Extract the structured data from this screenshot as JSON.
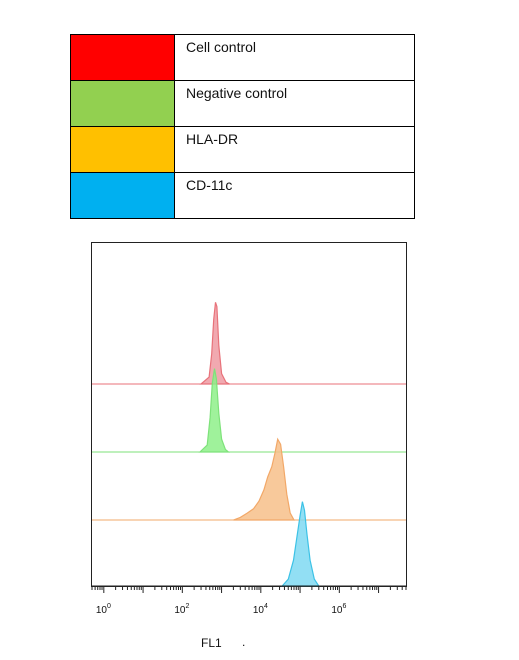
{
  "legend": [
    {
      "label": "Cell control",
      "color": "#ff0000"
    },
    {
      "label": "Negative control",
      "color": "#92d050"
    },
    {
      "label": "HLA-DR",
      "color": "#ffc000"
    },
    {
      "label": "CD-11c",
      "color": "#00b0f0"
    }
  ],
  "chart_data": {
    "type": "area",
    "title": "",
    "xlabel": "FL1",
    "ylabel": "",
    "xscale": "log",
    "xlim": [
      0.5,
      50000000
    ],
    "x_ticks": [
      {
        "value": 1,
        "base": "10",
        "exp": "0"
      },
      {
        "value": 100,
        "base": "10",
        "exp": "2"
      },
      {
        "value": 10000,
        "base": "10",
        "exp": "4"
      },
      {
        "value": 1000000,
        "base": "10",
        "exp": "6"
      }
    ],
    "layout": "stacked offset histograms, one baseline per series",
    "grid": false,
    "series": [
      {
        "name": "Cell control",
        "line_color": "#e8727a",
        "fill": "#ef9aa2",
        "points": [
          [
            300,
            0
          ],
          [
            480,
            0.08
          ],
          [
            560,
            0.35
          ],
          [
            630,
            0.75
          ],
          [
            700,
            0.95
          ],
          [
            760,
            0.9
          ],
          [
            850,
            0.45
          ],
          [
            1000,
            0.12
          ],
          [
            1300,
            0.02
          ],
          [
            1600,
            0
          ]
        ]
      },
      {
        "name": "Negative control",
        "line_color": "#7ee27a",
        "fill": "#8ef08a",
        "points": [
          [
            280,
            0
          ],
          [
            430,
            0.08
          ],
          [
            510,
            0.4
          ],
          [
            580,
            0.8
          ],
          [
            660,
            0.97
          ],
          [
            740,
            0.85
          ],
          [
            850,
            0.45
          ],
          [
            1000,
            0.15
          ],
          [
            1250,
            0.03
          ],
          [
            1500,
            0
          ]
        ]
      },
      {
        "name": "HLA-DR",
        "line_color": "#f2a868",
        "fill": "#f7c08a",
        "points": [
          [
            2000,
            0
          ],
          [
            3000,
            0.03
          ],
          [
            4500,
            0.08
          ],
          [
            6500,
            0.13
          ],
          [
            9000,
            0.22
          ],
          [
            12000,
            0.35
          ],
          [
            15000,
            0.5
          ],
          [
            19000,
            0.62
          ],
          [
            23000,
            0.78
          ],
          [
            27000,
            0.94
          ],
          [
            32000,
            0.88
          ],
          [
            38000,
            0.62
          ],
          [
            46000,
            0.3
          ],
          [
            56000,
            0.08
          ],
          [
            70000,
            0
          ]
        ]
      },
      {
        "name": "CD-11c",
        "line_color": "#3cc2e6",
        "fill": "#7fd9f2",
        "points": [
          [
            35000,
            0
          ],
          [
            50000,
            0.08
          ],
          [
            68000,
            0.3
          ],
          [
            85000,
            0.6
          ],
          [
            100000,
            0.82
          ],
          [
            115000,
            0.98
          ],
          [
            130000,
            0.88
          ],
          [
            150000,
            0.6
          ],
          [
            180000,
            0.3
          ],
          [
            230000,
            0.08
          ],
          [
            300000,
            0
          ]
        ]
      }
    ]
  },
  "footer_mark": "."
}
